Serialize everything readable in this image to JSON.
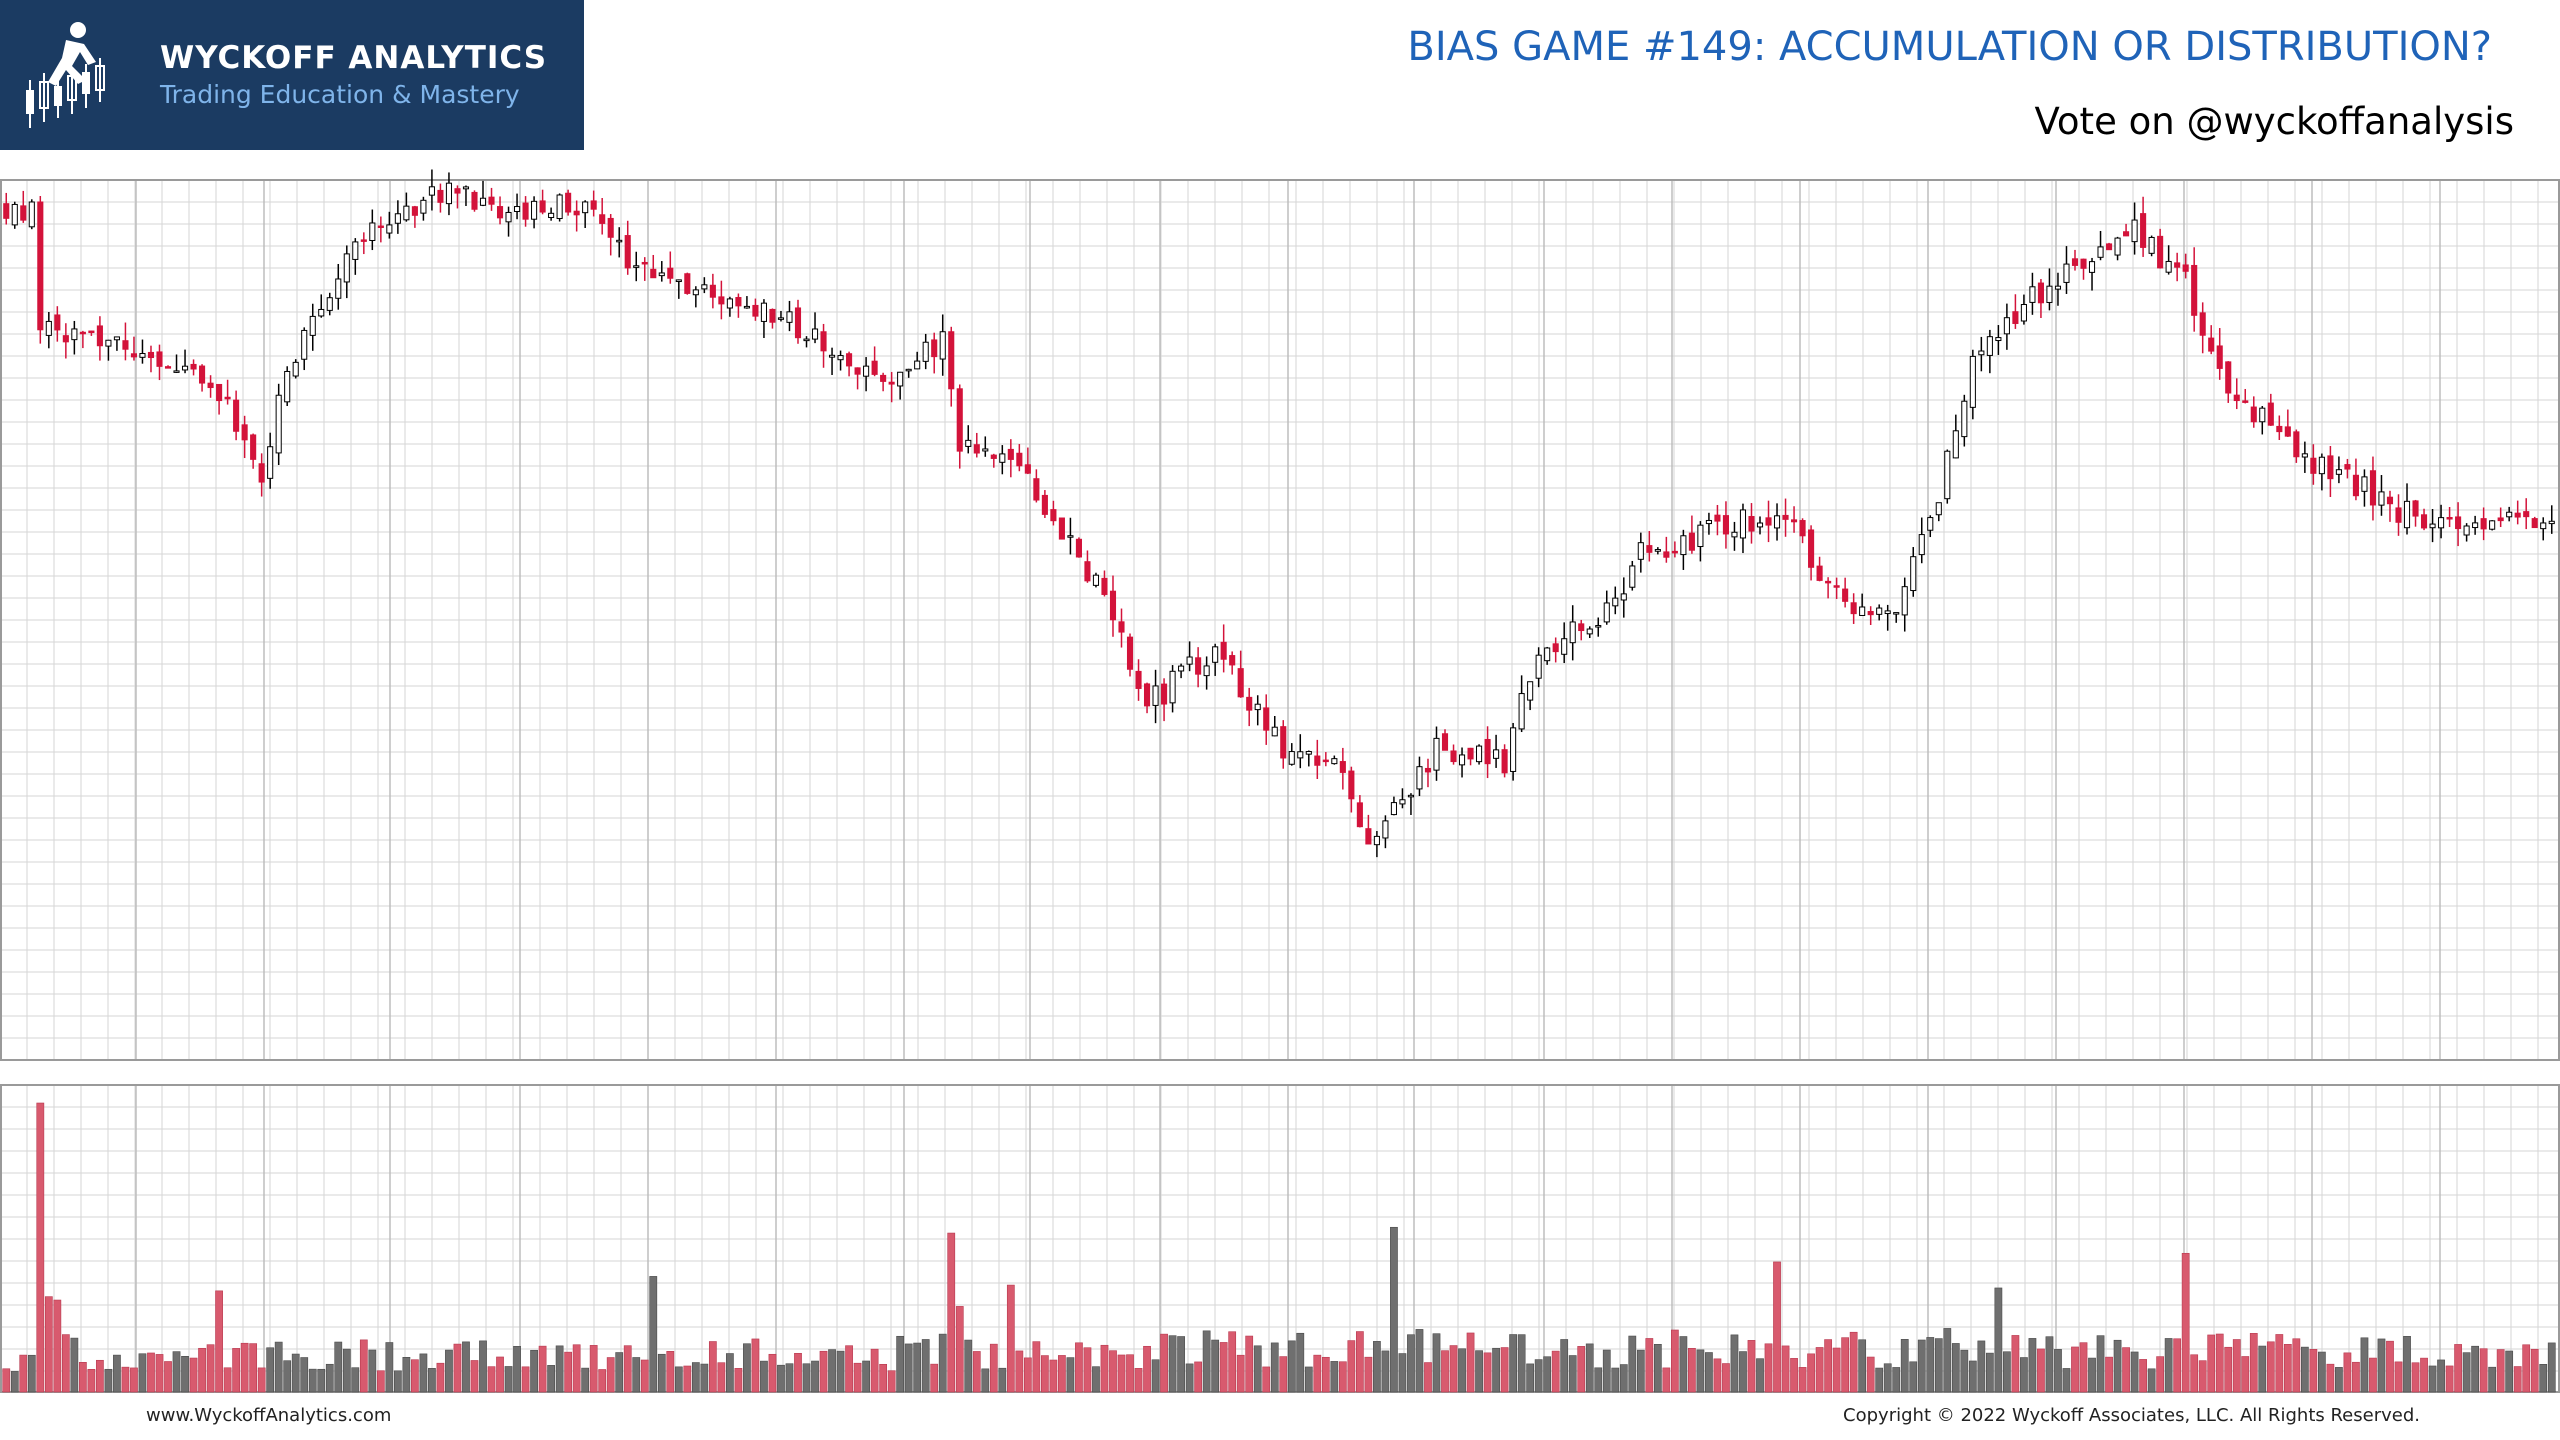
{
  "logo": {
    "name": "WYCKOFF ANALYTICS",
    "tagline": "Trading Education & Mastery",
    "icon": "runner-candlestick-icon"
  },
  "title": "BIAS GAME #149: ACCUMULATION OR DISTRIBUTION?",
  "subtitle": "Vote on @wyckoffanalysis",
  "footer": {
    "website": "www.WyckoffAnalytics.com",
    "copyright": "Copyright © 2022 Wyckoff Associates, LLC. All Rights Reserved."
  },
  "colors": {
    "up": "#000000",
    "up_body": "#ffffff",
    "down": "#d3133a",
    "vol_up": "#6f6f6f",
    "vol_down": "#d85a6e",
    "grid": "#d6d6d6",
    "logo_bg": "#1b3b62",
    "title": "#1f63b8"
  },
  "chart_data": {
    "type": "candlestick",
    "bars": 300,
    "axes_labels_shown": false,
    "grid": true,
    "price_anchors": [
      [
        0,
        100
      ],
      [
        3,
        99
      ],
      [
        4,
        86
      ],
      [
        12,
        83
      ],
      [
        18,
        82
      ],
      [
        26,
        76
      ],
      [
        30,
        68
      ],
      [
        32,
        76
      ],
      [
        36,
        86
      ],
      [
        42,
        97
      ],
      [
        52,
        102
      ],
      [
        58,
        99
      ],
      [
        68,
        100
      ],
      [
        74,
        92
      ],
      [
        84,
        89
      ],
      [
        92,
        86
      ],
      [
        100,
        80
      ],
      [
        104,
        78
      ],
      [
        110,
        84
      ],
      [
        112,
        71
      ],
      [
        118,
        70
      ],
      [
        122,
        64
      ],
      [
        130,
        51
      ],
      [
        134,
        40
      ],
      [
        142,
        47
      ],
      [
        150,
        35
      ],
      [
        156,
        34
      ],
      [
        160,
        22
      ],
      [
        168,
        35
      ],
      [
        176,
        33
      ],
      [
        180,
        47
      ],
      [
        188,
        51
      ],
      [
        192,
        58
      ],
      [
        204,
        62
      ],
      [
        210,
        61
      ],
      [
        216,
        52
      ],
      [
        222,
        52
      ],
      [
        226,
        62
      ],
      [
        232,
        84
      ],
      [
        244,
        94
      ],
      [
        250,
        97
      ],
      [
        256,
        91
      ],
      [
        260,
        79
      ],
      [
        270,
        70
      ],
      [
        282,
        63
      ],
      [
        290,
        62
      ],
      [
        299,
        62
      ]
    ],
    "volume_anchors": [
      [
        0,
        9
      ],
      [
        3,
        9
      ],
      [
        4,
        100
      ],
      [
        6,
        30
      ],
      [
        10,
        11
      ],
      [
        40,
        13
      ],
      [
        100,
        13
      ],
      [
        110,
        14
      ],
      [
        111,
        52
      ],
      [
        113,
        14
      ],
      [
        160,
        15
      ],
      [
        200,
        15
      ],
      [
        230,
        14
      ],
      [
        280,
        14
      ],
      [
        299,
        14
      ]
    ],
    "volume_spikes": [
      [
        4,
        100,
        "down"
      ],
      [
        5,
        33,
        "down"
      ],
      [
        25,
        35,
        "down"
      ],
      [
        76,
        40,
        "up"
      ],
      [
        111,
        55,
        "down"
      ],
      [
        118,
        37,
        "down"
      ],
      [
        163,
        57,
        "up"
      ],
      [
        208,
        45,
        "down"
      ],
      [
        228,
        22,
        "up"
      ],
      [
        234,
        36,
        "up"
      ],
      [
        256,
        48,
        "down"
      ]
    ]
  }
}
